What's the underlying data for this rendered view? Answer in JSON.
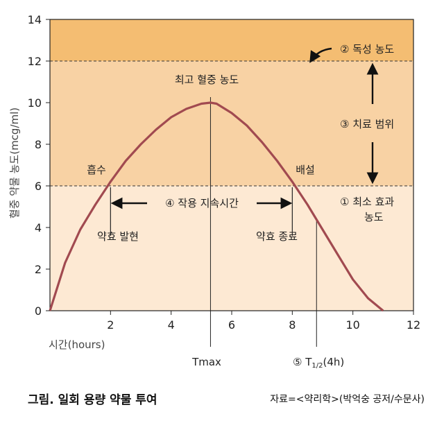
{
  "chart_data": {
    "type": "line",
    "title": "",
    "xlabel": "시간(hours)",
    "ylabel": "혈중 약물 농도(mcg/ml)",
    "xlim": [
      0,
      12
    ],
    "ylim": [
      0,
      14
    ],
    "x_ticks": [
      "2",
      "4",
      "6",
      "8",
      "10",
      "12"
    ],
    "y_ticks": [
      "0",
      "2",
      "4",
      "6",
      "8",
      "10",
      "12",
      "14"
    ],
    "grid": false,
    "series": [
      {
        "name": "",
        "x": [
          0,
          0.5,
          1,
          1.5,
          2,
          2.5,
          3,
          3.5,
          4,
          4.5,
          5,
          5.3,
          5.5,
          6,
          6.5,
          7,
          7.5,
          8,
          8.5,
          9,
          9.5,
          10,
          10.5,
          11
        ],
        "y": [
          0,
          2.3,
          3.9,
          5.1,
          6.2,
          7.2,
          8.0,
          8.7,
          9.3,
          9.7,
          9.95,
          10.0,
          9.95,
          9.5,
          8.9,
          8.1,
          7.2,
          6.2,
          5.1,
          3.9,
          2.7,
          1.5,
          0.6,
          0
        ]
      }
    ],
    "bands": [
      {
        "y0": 12,
        "y1": 14,
        "color": "#f4bd72"
      },
      {
        "y0": 6,
        "y1": 12,
        "color": "#f8d2a4"
      },
      {
        "y0": 0,
        "y1": 6,
        "color": "#fde9d3"
      }
    ],
    "reference_lines": {
      "toxic_y": 12,
      "min_effect_y": 6,
      "tmax_x": 5.3,
      "half_life_x": 8.8
    },
    "annotations": {
      "toxic": "② 독성 농도",
      "therapeutic": "③ 치료 범위",
      "min_effect_1": "① 최소 효과",
      "min_effect_2": "농도",
      "peak": "최고 혈중 농도",
      "absorption": "흡수",
      "excretion": "배설",
      "duration": "④ 작용 지속시간",
      "onset": "약효 발현",
      "offset": "약효 종료",
      "tmax": "Tmax",
      "half_life_prefix": "⑤ T",
      "half_life_sub": "1/2",
      "half_life_suffix": "(4h)"
    },
    "colors": {
      "curve": "#a14a50",
      "axis": "#222222",
      "dashed": "#333333"
    }
  },
  "caption": "그림. 일회 용량 약물 투여",
  "source": "자료=<약리학>(박억숭 공저/수문사)"
}
